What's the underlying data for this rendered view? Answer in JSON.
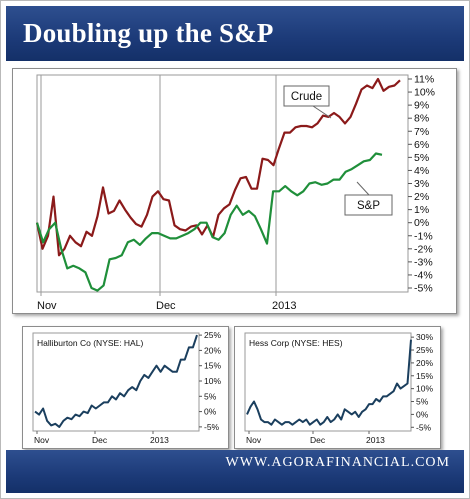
{
  "title": "Doubling up the S&P",
  "footer": {
    "site": "WWW.AGORAFINANCIAL.COM"
  },
  "chart_data": [
    {
      "type": "line",
      "title": "",
      "x_ticks": [
        "Nov",
        "Dec",
        "2013"
      ],
      "y_ticks": [
        "11%",
        "10%",
        "9%",
        "8%",
        "7%",
        "6%",
        "5%",
        "4%",
        "3%",
        "2%",
        "1%",
        "0%",
        "-1%",
        "-2%",
        "-3%",
        "-4%",
        "-5%"
      ],
      "ylim": [
        -5,
        11
      ],
      "grid": "vertical",
      "series": [
        {
          "name": "Crude",
          "color": "#8b1a1a",
          "values": [
            0,
            -2,
            -1,
            2,
            -2.5,
            -2,
            -1,
            -1.5,
            -1.8,
            -0.7,
            -1,
            0.5,
            2.7,
            0.7,
            0.9,
            1.7,
            1,
            0.4,
            -0.1,
            -0.3,
            0.6,
            2,
            2.4,
            1.8,
            1.7,
            -0.2,
            -0.5,
            -0.6,
            -0.3,
            -0.2,
            -0.9,
            -0.2,
            -1.1,
            0.6,
            1.1,
            1.4,
            2.5,
            3.4,
            3.5,
            2.6,
            2.6,
            4.9,
            4.8,
            4.4,
            5.7,
            6.9,
            6.9,
            7.3,
            7.4,
            7.4,
            7.3,
            7.6,
            8.2,
            8.1,
            8.4,
            8.1,
            7.6,
            8.1,
            9.1,
            10.2,
            10.5,
            10.3,
            11,
            10.1,
            10.4,
            10.5,
            10.9
          ]
        },
        {
          "name": "S&P",
          "color": "#1f8f3a",
          "values": [
            0,
            -1.5,
            -0.5,
            0,
            -2,
            -3.5,
            -3.3,
            -3.5,
            -3.8,
            -5,
            -5.2,
            -4.8,
            -2.8,
            -2.7,
            -2.5,
            -1.5,
            -1.3,
            -1.7,
            -1.2,
            -0.8,
            -0.8,
            -1,
            -1.2,
            -1.2,
            -1,
            -0.8,
            -0.5,
            0,
            0,
            -1.1,
            -1.3,
            -0.8,
            0.6,
            1.3,
            0.6,
            0.9,
            0.5,
            -0.5,
            -1.6,
            2.4,
            2.4,
            2.8,
            2.4,
            2.1,
            2.4,
            3,
            3.1,
            2.9,
            3,
            3.3,
            3.3,
            3.9,
            4.1,
            4.4,
            4.7,
            4.8,
            5.3,
            5.2
          ]
        }
      ],
      "annotations": [
        "Crude",
        "S&P"
      ]
    },
    {
      "type": "line",
      "title": "Halliburton Co (NYSE: HAL)",
      "x_ticks": [
        "Nov",
        "Dec",
        "2013"
      ],
      "y_ticks": [
        "25%",
        "20%",
        "15%",
        "10%",
        "5%",
        "0%",
        "-5%"
      ],
      "ylim": [
        -7,
        27
      ],
      "series": [
        {
          "name": "Halliburton Co (NYSE: HAL)",
          "color": "#1b3f5e",
          "values": [
            0,
            -1,
            1,
            -3,
            -4.5,
            -4,
            -5,
            -3,
            -2,
            -2.5,
            -1,
            -1.5,
            0,
            -0.5,
            2,
            1,
            2,
            3,
            3,
            5,
            4,
            6,
            5,
            7,
            8,
            7,
            10,
            12,
            11,
            13,
            15,
            13,
            15,
            14,
            13,
            13,
            17,
            17,
            21,
            21,
            25
          ]
        }
      ]
    },
    {
      "type": "line",
      "title": "Hess Corp (NYSE: HES)",
      "x_ticks": [
        "Nov",
        "Dec",
        "2013"
      ],
      "y_ticks": [
        "30%",
        "25%",
        "20%",
        "15%",
        "10%",
        "5%",
        "0%",
        "-5%"
      ],
      "ylim": [
        -8,
        32
      ],
      "series": [
        {
          "name": "Hess Corp (NYSE: HES)",
          "color": "#1b3f5e",
          "values": [
            0,
            3,
            5,
            2,
            -2,
            -3,
            -3,
            -4,
            -2,
            -3,
            -4,
            -3,
            -3,
            -4,
            -3,
            -2,
            -3,
            -2,
            -4,
            -3,
            -2,
            -4,
            -3,
            -1,
            -3,
            -2,
            0,
            -2,
            2,
            1,
            0,
            1,
            -1,
            1,
            2,
            4,
            4,
            6,
            5,
            7,
            7,
            8,
            9,
            12,
            10,
            11,
            12,
            29
          ]
        }
      ]
    }
  ]
}
